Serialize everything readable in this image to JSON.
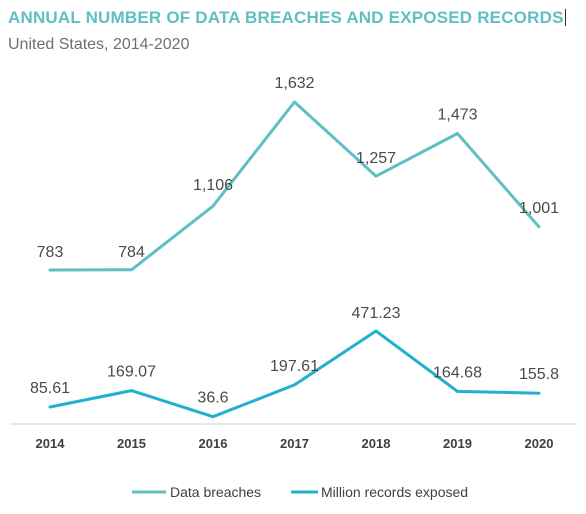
{
  "header": {
    "title": "ANNUAL NUMBER OF DATA BREACHES AND EXPOSED RECORDS",
    "subtitle": "United States, 2014-2020"
  },
  "chart_data": {
    "type": "line",
    "title": "ANNUAL NUMBER OF DATA BREACHES AND EXPOSED RECORDS",
    "subtitle": "United States, 2014-2020",
    "categories": [
      "2014",
      "2015",
      "2016",
      "2017",
      "2018",
      "2019",
      "2020"
    ],
    "series": [
      {
        "name": "Data breaches",
        "values": [
          783,
          784,
          1106,
          1632,
          1257,
          1473,
          1001
        ],
        "labels": [
          "783",
          "784",
          "1,106",
          "1,632",
          "1,257",
          "1,473",
          "1,001"
        ],
        "color": "#5fbfc2"
      },
      {
        "name": "Million records exposed",
        "values": [
          85.61,
          169.07,
          36.6,
          197.61,
          471.23,
          164.68,
          155.8
        ],
        "labels": [
          "85.61",
          "169.07",
          "36.6",
          "197.61",
          "471.23",
          "164.68",
          "155.8"
        ],
        "color": "#1fb1cd"
      }
    ],
    "legend_position": "bottom",
    "grid": false
  }
}
